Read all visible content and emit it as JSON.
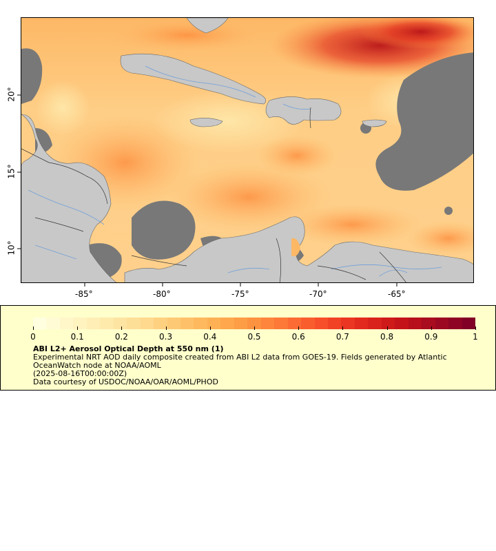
{
  "map": {
    "lon_ticks": [
      "-85°",
      "-80°",
      "-75°",
      "-70°",
      "-65°"
    ],
    "lat_ticks": [
      "20°",
      "15°",
      "10°"
    ],
    "colors": {
      "land": "#c8c8c8",
      "cloud_mask": "#787878",
      "rivers": "#6f9fd8",
      "borders": "#333333"
    }
  },
  "legend": {
    "colorbar_ticks": [
      "0",
      "0.1",
      "0.2",
      "0.3",
      "0.4",
      "0.5",
      "0.6",
      "0.7",
      "0.8",
      "0.9",
      "1"
    ],
    "colorbar_colors": [
      "#ffffe0",
      "#fff4c2",
      "#fee8a8",
      "#fed98e",
      "#fec46c",
      "#feae50",
      "#fd9240",
      "#fc7034",
      "#f54a28",
      "#e32a1e",
      "#c81418",
      "#a50a20",
      "#800026"
    ],
    "title": "ABI L2+ Aerosol Optical Depth at 550 nm (1)",
    "line1": "Experimental NRT AOD daily composite created from ABI L2 data from GOES-19. Fields generated by Atlantic",
    "line2": "OceanWatch node at NOAA/AOML",
    "line3": "(2025-08-16T00:00:00Z)",
    "line4": "Data courtesy of USDOC/NOAA/OAR/AOML/PHOD"
  }
}
